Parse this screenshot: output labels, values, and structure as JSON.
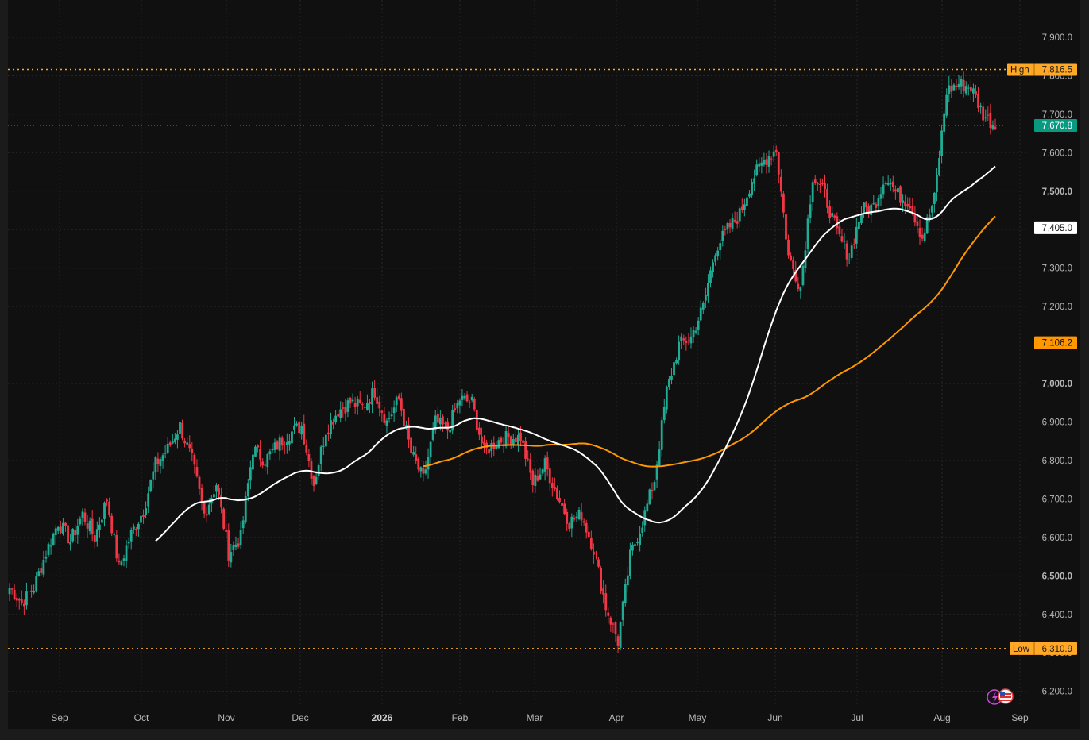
{
  "chart_data": {
    "type": "candlestick",
    "y_axis": {
      "range": [
        6150,
        7950
      ],
      "ticks": [
        "7,900.0",
        "7,800.0",
        "7,700.0",
        "7,600.0",
        "7,500.0",
        "7,400.0",
        "7,300.0",
        "7,200.0",
        "7,100.0",
        "7,000.0",
        "6,900.0",
        "6,800.0",
        "6,700.0",
        "6,600.0",
        "6,500.0",
        "6,400.0",
        "6,300.0",
        "6,200.0"
      ],
      "tick_values": [
        7900,
        7800,
        7700,
        7600,
        7500,
        7400,
        7300,
        7200,
        7100,
        7000,
        6900,
        6800,
        6700,
        6600,
        6500,
        6400,
        6300,
        6200
      ],
      "bold_ticks": [
        7500,
        7000,
        6500
      ]
    },
    "x_axis": {
      "labels": [
        "Sep",
        "Oct",
        "Nov",
        "Dec",
        "2026",
        "Feb",
        "Mar",
        "Apr",
        "May",
        "Jun",
        "Jul",
        "Aug",
        "Sep"
      ],
      "bold_labels": [
        "2026"
      ]
    },
    "high": {
      "label": "High",
      "value_text": "7,816.5",
      "value": 7816.5
    },
    "low": {
      "label": "Low",
      "value_text": "6,310.9",
      "value": 6310.9
    },
    "last_price": {
      "value_text": "7,670.8",
      "value": 7670.8
    },
    "ma_long_label": {
      "value_text": "7,106.2",
      "value": 7106.2
    },
    "ma_short_label": {
      "value_text": "7,405.0",
      "value": 7405.0
    },
    "closes_by_week": [
      6470,
      6430,
      6470,
      6560,
      6640,
      6590,
      6660,
      6600,
      6700,
      6520,
      6610,
      6670,
      6790,
      6830,
      6890,
      6800,
      6660,
      6740,
      6560,
      6600,
      6830,
      6800,
      6840,
      6870,
      6890,
      6740,
      6880,
      6930,
      6950,
      6940,
      6980,
      6900,
      6960,
      6820,
      6750,
      6900,
      6880,
      6960,
      6950,
      6820,
      6850,
      6860,
      6860,
      6740,
      6790,
      6710,
      6640,
      6660,
      6570,
      6420,
      6330,
      6550,
      6640,
      6750,
      6980,
      7100,
      7120,
      7200,
      7350,
      7400,
      7440,
      7530,
      7580,
      7610,
      7330,
      7250,
      7540,
      7490,
      7390,
      7330,
      7450,
      7460,
      7540,
      7490,
      7470,
      7380,
      7480,
      7760,
      7780,
      7770,
      7700,
      7670
    ],
    "colors": {
      "up": "#22ab94",
      "down": "#f23645",
      "ma_short": "#ffffff",
      "ma_long": "#ff9800",
      "level_line": "#ffa726",
      "last_tag": "#089981",
      "background": "#101010",
      "grid": "#262626"
    }
  }
}
